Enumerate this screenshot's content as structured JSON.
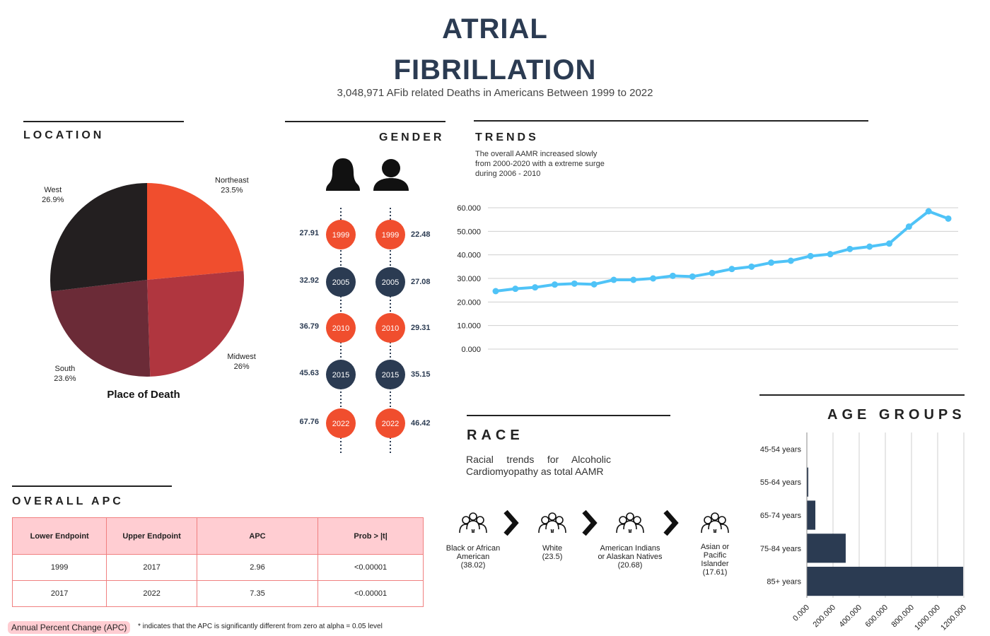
{
  "header": {
    "title": "ATRIAL FIBRILLATION",
    "subtitle": "3,048,971 AFib related Deaths in Americans Between 1999 to 2022"
  },
  "chart_data": [
    {
      "type": "pie",
      "heading": "LOCATION",
      "title": "Place of Death",
      "categories": [
        "Northeast",
        "Midwest",
        "South",
        "West"
      ],
      "values": [
        23.5,
        26,
        23.6,
        26.9
      ],
      "value_labels": [
        "23.5%",
        "26%",
        "23.6%",
        "26.9%"
      ],
      "colors": [
        "#f04e2e",
        "#b0363f",
        "#6b2b37",
        "#231f20"
      ]
    },
    {
      "type": "line",
      "heading": "TRENDS",
      "subtitle": "The overall AAMR increased slowly from 2000-2020 with a extreme surge during 2006 - 2010",
      "values": [
        24.6,
        25.6,
        26.2,
        27.4,
        27.8,
        27.5,
        29.4,
        29.4,
        30.0,
        31.1,
        30.8,
        32.3,
        34.0,
        35.0,
        36.7,
        37.5,
        39.5,
        40.3,
        42.5,
        43.5,
        44.8,
        52.0,
        58.5,
        55.4
      ],
      "color": "#4fc3f7",
      "ylim": [
        0,
        60
      ],
      "yticks": [
        {
          "value": 0,
          "label": "0.000"
        },
        {
          "value": 10,
          "label": "10.000"
        },
        {
          "value": 20,
          "label": "20.000"
        },
        {
          "value": 30,
          "label": "30.000"
        },
        {
          "value": 40,
          "label": "40.000"
        },
        {
          "value": 50,
          "label": "50.000"
        },
        {
          "value": 60,
          "label": "60.000"
        }
      ],
      "grid": true
    },
    {
      "type": "hbar",
      "heading": "AGE GROUPS",
      "categories": [
        "45-54 years",
        "55-64 years",
        "65-74 years",
        "75-84 years",
        "85+ years"
      ],
      "values": [
        2000,
        11000,
        65000,
        297000,
        1195000
      ],
      "color": "#2b3b52",
      "xlim": [
        0,
        1200000
      ],
      "xticks": [
        {
          "value": 0,
          "label": "0.000"
        },
        {
          "value": 200000,
          "label": "200.000"
        },
        {
          "value": 400000,
          "label": "400.000"
        },
        {
          "value": 600000,
          "label": "600.000"
        },
        {
          "value": 800000,
          "label": "800.000"
        },
        {
          "value": 1000000,
          "label": "1000.000"
        },
        {
          "value": 1200000,
          "label": "1200.000"
        }
      ],
      "grid": true
    }
  ],
  "gender": {
    "heading": "GENDER",
    "years": [
      "1999",
      "2005",
      "2010",
      "2015",
      "2022"
    ],
    "female": [
      "27.91",
      "32.92",
      "36.79",
      "45.63",
      "67.76"
    ],
    "male": [
      "22.48",
      "27.08",
      "29.31",
      "35.15",
      "46.42"
    ]
  },
  "race": {
    "heading": "RACE",
    "description": "Racial trends for Alcoholic Cardiomyopathy as total AAMR",
    "groups": [
      {
        "name": "Black or African American",
        "value": "(38.02)"
      },
      {
        "name": "White",
        "value": "(23.5)"
      },
      {
        "name": "American Indians or Alaskan Natives",
        "value": "(20.68)"
      },
      {
        "name": "Asian or Pacific Islander",
        "value": "(17.61)"
      }
    ]
  },
  "apc": {
    "heading": "OVERALL APC",
    "columns": [
      "Lower Endpoint",
      "Upper Endpoint",
      "APC",
      "Prob > |t|"
    ],
    "rows": [
      [
        "1999",
        "2017",
        "2.96",
        "<0.00001"
      ],
      [
        "2017",
        "2022",
        "7.35",
        "<0.00001"
      ]
    ]
  },
  "footnote": {
    "badge": "Annual Percent Change (APC)",
    "note": "* indicates that the APC is significantly different from zero at alpha = 0.05 level"
  }
}
